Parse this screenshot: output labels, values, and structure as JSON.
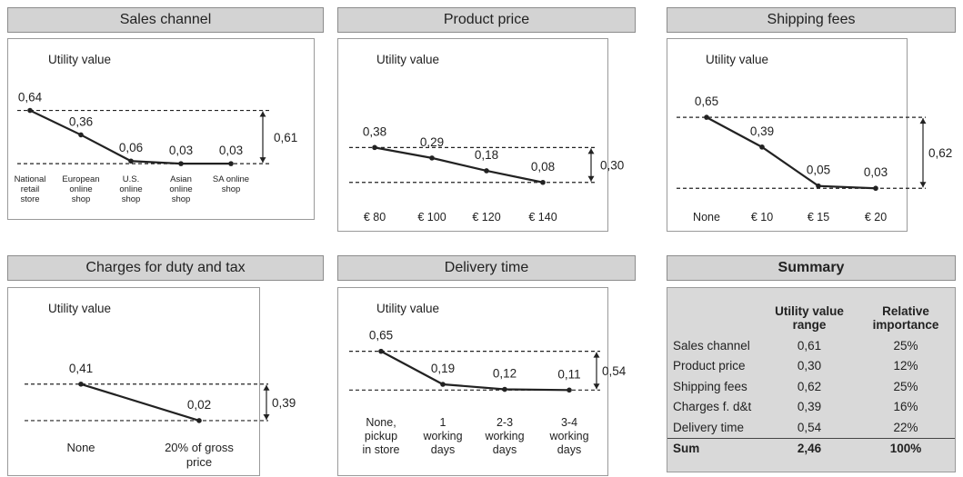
{
  "chart_data": [
    {
      "type": "line",
      "title": "Sales channel",
      "ylabel": "Utility value",
      "categories": [
        "National retail store",
        "European online shop",
        "U.S. online shop",
        "Asian online shop",
        "SA online shop"
      ],
      "values": [
        0.64,
        0.36,
        0.06,
        0.03,
        0.03
      ],
      "value_labels": [
        "0,64",
        "0,36",
        "0,06",
        "0,03",
        "0,03"
      ],
      "range_label": "0,61",
      "ylim": [
        0,
        0.75
      ]
    },
    {
      "type": "line",
      "title": "Product price",
      "ylabel": "Utility value",
      "categories": [
        "€ 80",
        "€ 100",
        "€ 120",
        "€ 140"
      ],
      "values": [
        0.38,
        0.29,
        0.18,
        0.08
      ],
      "value_labels": [
        "0,38",
        "0,29",
        "0,18",
        "0,08"
      ],
      "range_label": "0,30",
      "ylim": [
        0,
        0.75
      ]
    },
    {
      "type": "line",
      "title": "Shipping fees",
      "ylabel": "Utility value",
      "categories": [
        "None",
        "€ 10",
        "€ 15",
        "€ 20"
      ],
      "values": [
        0.65,
        0.39,
        0.05,
        0.03
      ],
      "value_labels": [
        "0,65",
        "0,39",
        "0,05",
        "0,03"
      ],
      "range_label": "0,62",
      "ylim": [
        0,
        0.75
      ]
    },
    {
      "type": "line",
      "title": "Charges for duty and tax",
      "ylabel": "Utility value",
      "categories": [
        "None",
        "20% of gross price"
      ],
      "values": [
        0.41,
        0.02
      ],
      "value_labels": [
        "0,41",
        "0,02"
      ],
      "range_label": "0,39",
      "ylim": [
        0,
        0.75
      ]
    },
    {
      "type": "line",
      "title": "Delivery time",
      "ylabel": "Utility value",
      "categories": [
        "None, pickup in store",
        "1 working days",
        "2-3 working days",
        "3-4 working days"
      ],
      "values": [
        0.65,
        0.19,
        0.12,
        0.11
      ],
      "value_labels": [
        "0,65",
        "0,19",
        "0,12",
        "0,11"
      ],
      "range_label": "0,54",
      "ylim": [
        0,
        0.75
      ]
    },
    {
      "type": "table",
      "title": "Summary",
      "columns": [
        "",
        "Utility value range",
        "Relative importance"
      ],
      "rows": [
        [
          "Sales channel",
          "0,61",
          "25%"
        ],
        [
          "Product price",
          "0,30",
          "12%"
        ],
        [
          "Shipping  fees",
          "0,62",
          "25%"
        ],
        [
          "Charges f. d&t",
          "0,39",
          "16%"
        ],
        [
          "Delivery time",
          "0,54",
          "22%"
        ]
      ],
      "total": [
        "Sum",
        "2,46",
        "100%"
      ]
    }
  ],
  "colors": {
    "header_bg": "#d3d3d3",
    "line": "#222222",
    "summary_bg": "#d9d9d9"
  }
}
